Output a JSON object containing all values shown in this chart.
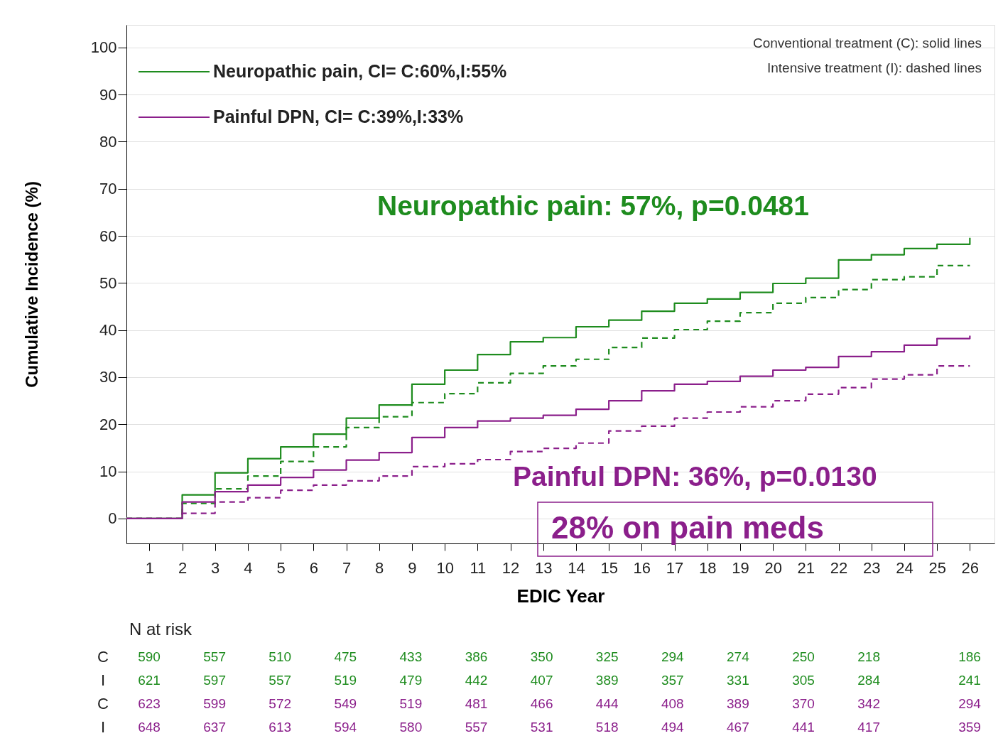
{
  "chart_data": {
    "type": "step",
    "xlabel": "EDIC Year",
    "ylabel": "Cumulative Incidence (%)",
    "xlim": [
      0.3,
      26.75
    ],
    "ylim": [
      -5.3,
      104.8
    ],
    "xticks": [
      1,
      2,
      3,
      4,
      5,
      6,
      7,
      8,
      9,
      10,
      11,
      12,
      13,
      14,
      15,
      16,
      17,
      18,
      19,
      20,
      21,
      22,
      23,
      24,
      25,
      26
    ],
    "yticks": [
      0,
      10,
      20,
      30,
      40,
      50,
      60,
      70,
      80,
      90,
      100
    ],
    "grid": "y",
    "legend": "top left",
    "x": [
      0.3,
      2,
      3,
      4,
      5,
      6,
      7,
      8,
      9,
      10,
      11,
      12,
      13,
      14,
      15,
      16,
      17,
      18,
      19,
      20,
      21,
      22,
      23,
      24,
      25,
      26
    ],
    "series": [
      {
        "name": "Neuropathic pain, CI= C:60%,I:55%",
        "color": "#1e8c1e",
        "line_style": "solid",
        "values": [
          0,
          5.0,
          9.7,
          12.7,
          15.2,
          17.9,
          21.3,
          24.1,
          28.5,
          31.5,
          34.8,
          37.5,
          38.4,
          40.7,
          42.1,
          44.0,
          45.7,
          46.6,
          48.0,
          49.9,
          51.0,
          54.9,
          56.0,
          57.3,
          58.2,
          59.6
        ]
      },
      {
        "color": "#1e8c1e",
        "line_style": "dashed",
        "values": [
          0,
          3.2,
          6.3,
          9.0,
          12.1,
          15.2,
          19.3,
          21.6,
          24.6,
          26.5,
          28.8,
          30.8,
          32.4,
          33.8,
          36.3,
          38.3,
          40.1,
          41.9,
          43.7,
          45.7,
          46.9,
          48.6,
          50.7,
          51.3,
          53.7,
          53.7
        ]
      },
      {
        "name": "Painful DPN, CI= C:39%,I:33%",
        "color": "#8b1f8b",
        "line_style": "solid",
        "values": [
          0,
          3.5,
          5.7,
          7.1,
          8.7,
          10.3,
          12.4,
          14.0,
          17.2,
          19.3,
          20.7,
          21.3,
          21.9,
          23.2,
          25.0,
          27.1,
          28.5,
          29.1,
          30.2,
          31.5,
          32.1,
          34.4,
          35.4,
          36.8,
          38.2,
          38.8
        ]
      },
      {
        "color": "#8b1f8b",
        "line_style": "dashed",
        "values": [
          0,
          1.1,
          3.5,
          4.4,
          6.0,
          7.1,
          8.0,
          9.0,
          11.0,
          11.6,
          12.5,
          14.2,
          14.9,
          16.0,
          18.6,
          19.6,
          21.3,
          22.6,
          23.7,
          25.0,
          26.4,
          27.8,
          29.6,
          30.5,
          32.4,
          32.4
        ]
      }
    ],
    "annotations": [
      "Conventional treatment (C): solid lines",
      "Intensive treatment (I): dashed lines",
      "Neuropathic pain: 57%, p=0.0481",
      "Painful DPN: 36%, p=0.0130",
      "28% on pain meds",
      "N at risk",
      "C 590 557 510 475 433 386 350 325 294 274 250 218 186",
      "I 621 597 557 519 479 442 407 389 357 331 305 284 241",
      "C 623 599 572 549 519 481 466 444 408 389 370 342 294",
      "I 648 637 613 594 580 557 531 518 494 467 441 417 359"
    ]
  }
}
